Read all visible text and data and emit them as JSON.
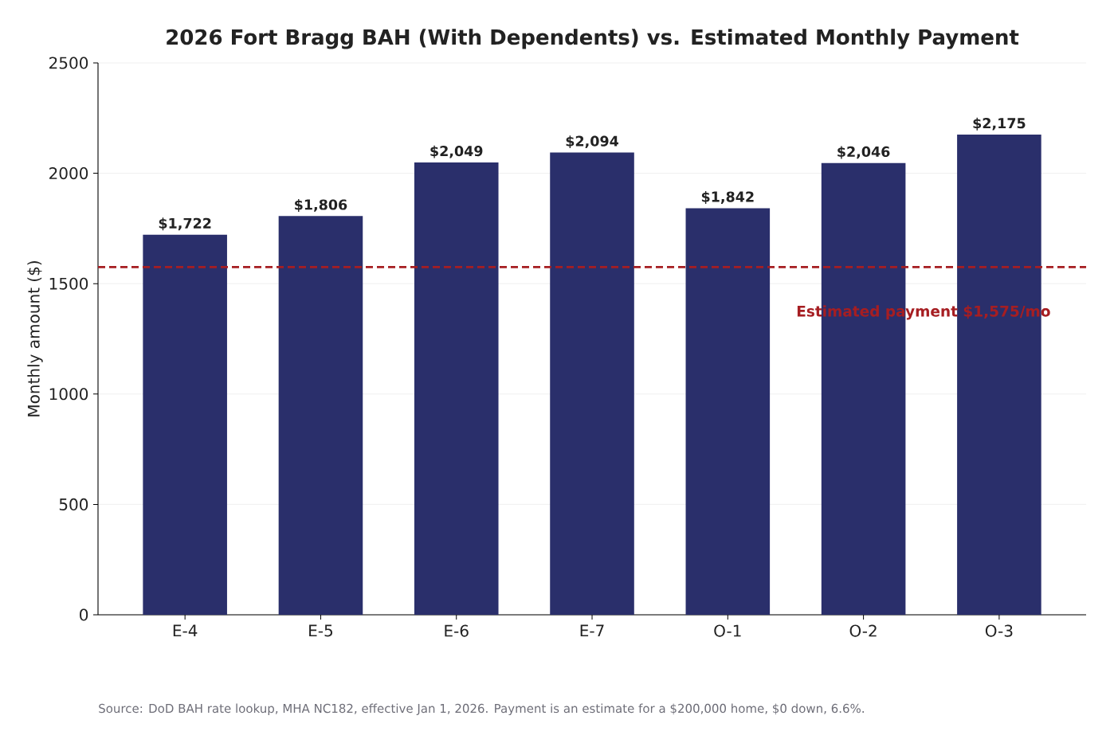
{
  "chart_data": {
    "type": "bar",
    "title": "2026 Fort Bragg BAH (With Dependents) vs. Estimated Monthly Payment",
    "ylabel": "Monthly amount ($)",
    "categories": [
      "E-4",
      "E-5",
      "E-6",
      "E-7",
      "O-1",
      "O-2",
      "O-3"
    ],
    "values": [
      1722,
      1806,
      2049,
      2094,
      1842,
      2046,
      2175
    ],
    "value_labels": [
      "$1,722",
      "$1,806",
      "$2,049",
      "$2,094",
      "$1,842",
      "$2,046",
      "$2,175"
    ],
    "color": "#2a2f6b",
    "ylim": [
      0,
      2500
    ],
    "yticks": [
      0,
      500,
      1000,
      1500,
      2000,
      2500
    ],
    "grid": "y",
    "ref_lines": [
      {
        "axis": "y",
        "value": 1575,
        "label": "Estimated payment $1,575/mo",
        "color": "#a61e22",
        "line_style": "dashed"
      }
    ],
    "annotations": [
      "Source: DoD BAH rate lookup, MHA NC182, effective Jan 1, 2026. Payment is an estimate for a $200,000 home, $0 down, 6.6%."
    ]
  }
}
